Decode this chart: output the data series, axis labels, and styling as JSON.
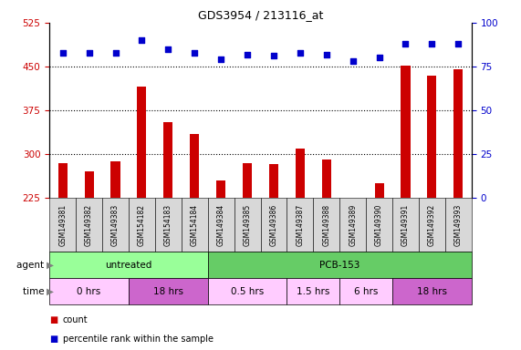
{
  "title": "GDS3954 / 213116_at",
  "samples": [
    "GSM149381",
    "GSM149382",
    "GSM149383",
    "GSM154182",
    "GSM154183",
    "GSM154184",
    "GSM149384",
    "GSM149385",
    "GSM149386",
    "GSM149387",
    "GSM149388",
    "GSM149389",
    "GSM149390",
    "GSM149391",
    "GSM149392",
    "GSM149393"
  ],
  "counts": [
    285,
    270,
    288,
    415,
    355,
    335,
    255,
    285,
    282,
    310,
    290,
    218,
    250,
    452,
    435,
    445
  ],
  "percentile_ranks": [
    83,
    83,
    83,
    90,
    85,
    83,
    79,
    82,
    81,
    83,
    82,
    78,
    80,
    88,
    88,
    88
  ],
  "ylim_left": [
    225,
    525
  ],
  "ylim_right": [
    0,
    100
  ],
  "yticks_left": [
    225,
    300,
    375,
    450,
    525
  ],
  "yticks_right": [
    0,
    25,
    50,
    75,
    100
  ],
  "bar_color": "#cc0000",
  "dot_color": "#0000cc",
  "agent_groups": [
    {
      "label": "untreated",
      "start": 0,
      "end": 6,
      "color": "#99ff99"
    },
    {
      "label": "PCB-153",
      "start": 6,
      "end": 16,
      "color": "#66cc66"
    }
  ],
  "time_groups": [
    {
      "label": "0 hrs",
      "start": 0,
      "end": 3,
      "color": "#ffccff"
    },
    {
      "label": "18 hrs",
      "start": 3,
      "end": 6,
      "color": "#cc66cc"
    },
    {
      "label": "0.5 hrs",
      "start": 6,
      "end": 9,
      "color": "#ffccff"
    },
    {
      "label": "1.5 hrs",
      "start": 9,
      "end": 11,
      "color": "#ffccff"
    },
    {
      "label": "6 hrs",
      "start": 11,
      "end": 13,
      "color": "#ffccff"
    },
    {
      "label": "18 hrs",
      "start": 13,
      "end": 16,
      "color": "#cc66cc"
    }
  ],
  "bar_width": 0.35,
  "tick_color_left": "#cc0000",
  "tick_color_right": "#0000cc",
  "gridline_y": [
    300,
    375,
    450
  ],
  "label_fontsize": 7,
  "title_fontsize": 9,
  "annot_fontsize": 7.5
}
